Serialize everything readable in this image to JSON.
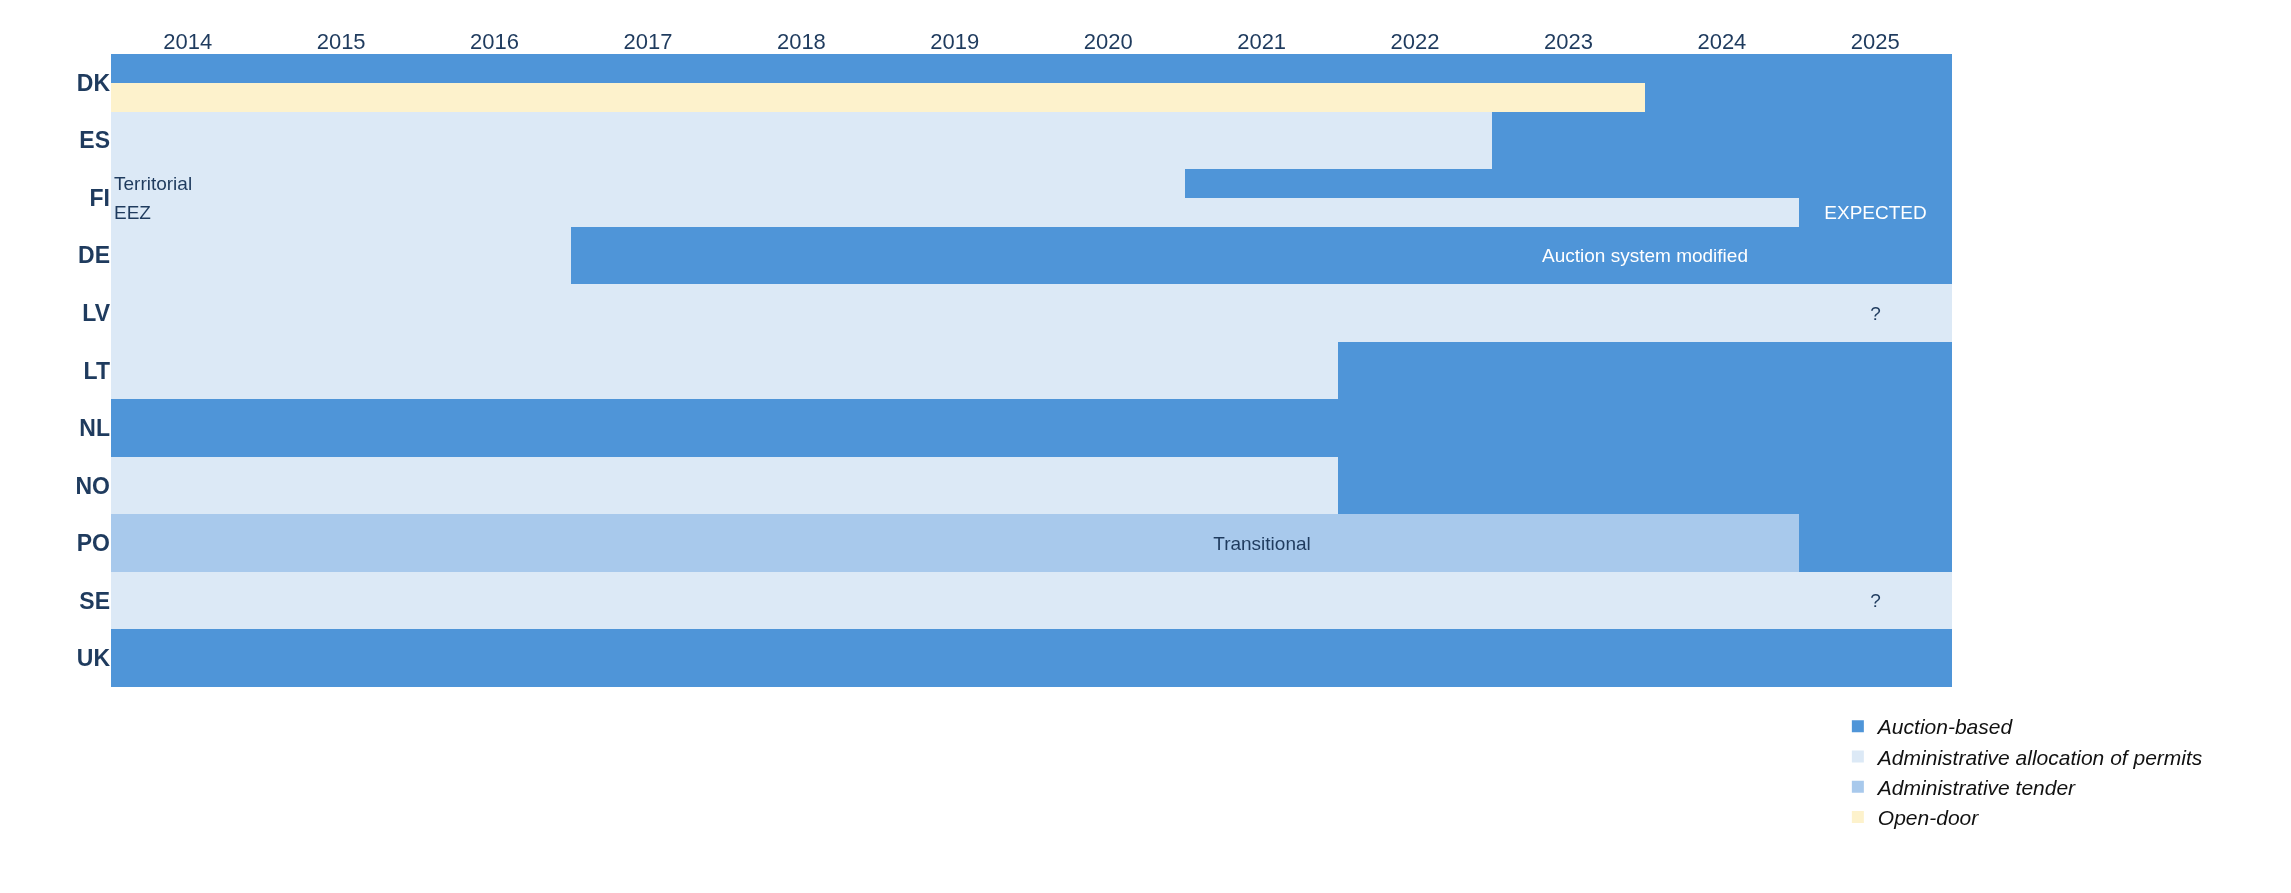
{
  "chart_data": {
    "type": "bar",
    "orientation": "horizontal",
    "legend": "bottom right",
    "categories": [
      "DK",
      null,
      "ES",
      "FI",
      null,
      "DE",
      "LV",
      "LT",
      "NL",
      "NO",
      "PO",
      "SE",
      "UK"
    ],
    "xlim": [
      2014,
      2026
    ],
    "xticks": [
      {
        "value": 2014.5,
        "label": "2014"
      },
      {
        "value": 2015.5,
        "label": "2015"
      },
      {
        "value": 2016.5,
        "label": "2016"
      },
      {
        "value": 2017.5,
        "label": "2017"
      },
      {
        "value": 2018.5,
        "label": "2018"
      },
      {
        "value": 2019.5,
        "label": "2019"
      },
      {
        "value": 2020.5,
        "label": "2020"
      },
      {
        "value": 2021.5,
        "label": "2021"
      },
      {
        "value": 2022.5,
        "label": "2022"
      },
      {
        "value": 2023.5,
        "label": "2023"
      },
      {
        "value": 2024.5,
        "label": "2024"
      },
      {
        "value": 2025.5,
        "label": "2025"
      }
    ],
    "series": [
      {
        "name": "Auction-based",
        "color": "#4f95d8",
        "values": [
          12,
          2,
          3,
          5,
          1,
          5,
          null,
          4,
          12,
          4,
          1,
          null,
          12
        ],
        "base": [
          2014,
          2024,
          2023,
          2021,
          2025,
          2017,
          null,
          2022,
          2014,
          2022,
          2025,
          null,
          2014
        ],
        "value_labels": [
          null,
          null,
          null,
          null,
          "EXPECTED",
          null,
          null,
          null,
          null,
          null,
          null,
          null,
          null
        ]
      },
      {
        "color": "#4f95d8",
        "values": [
          null,
          null,
          null,
          null,
          null,
          4,
          null,
          null,
          null,
          null,
          null,
          null,
          null
        ],
        "base": [
          null,
          null,
          null,
          null,
          null,
          2022,
          null,
          null,
          null,
          null,
          null,
          null,
          null
        ],
        "value_labels": [
          null,
          null,
          null,
          null,
          null,
          "Auction system modified",
          null,
          null,
          null,
          null,
          null,
          null,
          null
        ]
      },
      {
        "name": "Administrative allocation of permits",
        "color": "#dce9f6",
        "values": [
          null,
          null,
          9,
          7,
          11,
          3,
          11,
          8,
          null,
          8,
          null,
          11,
          null
        ],
        "base": [
          null,
          null,
          2014,
          2014,
          2014,
          2014,
          2014,
          2014,
          null,
          2014,
          null,
          2014,
          null
        ],
        "value_labels": [
          null,
          null,
          null,
          "Territorial",
          "EEZ",
          null,
          null,
          null,
          null,
          null,
          null,
          null,
          null
        ]
      },
      {
        "color": "#dce9f6",
        "values": [
          null,
          null,
          null,
          null,
          null,
          null,
          1,
          null,
          null,
          null,
          null,
          1,
          null
        ],
        "base": [
          null,
          null,
          null,
          null,
          null,
          null,
          2025,
          null,
          null,
          null,
          null,
          2025,
          null
        ],
        "value_labels": [
          null,
          null,
          null,
          null,
          null,
          null,
          "?",
          null,
          null,
          null,
          null,
          "?",
          null
        ]
      },
      {
        "name": "Administrative tender",
        "color": "#a8c9ec",
        "values": [
          null,
          null,
          null,
          null,
          null,
          null,
          null,
          null,
          null,
          null,
          4,
          null,
          null
        ],
        "base": [
          null,
          null,
          null,
          null,
          null,
          null,
          null,
          null,
          null,
          null,
          2014,
          null,
          null
        ]
      },
      {
        "color": "#a8c9ec",
        "values": [
          null,
          null,
          null,
          null,
          null,
          null,
          null,
          null,
          null,
          null,
          7,
          null,
          null
        ],
        "base": [
          null,
          null,
          null,
          null,
          null,
          null,
          null,
          null,
          null,
          null,
          2018,
          null,
          null
        ],
        "value_labels": [
          null,
          null,
          null,
          null,
          null,
          null,
          null,
          null,
          null,
          null,
          "Transitional",
          null,
          null
        ]
      },
      {
        "name": "Open-door",
        "color": "#fdf2cc",
        "values": [
          null,
          10,
          null,
          null,
          null,
          null,
          null,
          null,
          null,
          null,
          null,
          null,
          null
        ],
        "base": [
          null,
          2014,
          null,
          null,
          null,
          null,
          null,
          null,
          null,
          null,
          null,
          null,
          null
        ]
      }
    ]
  }
}
